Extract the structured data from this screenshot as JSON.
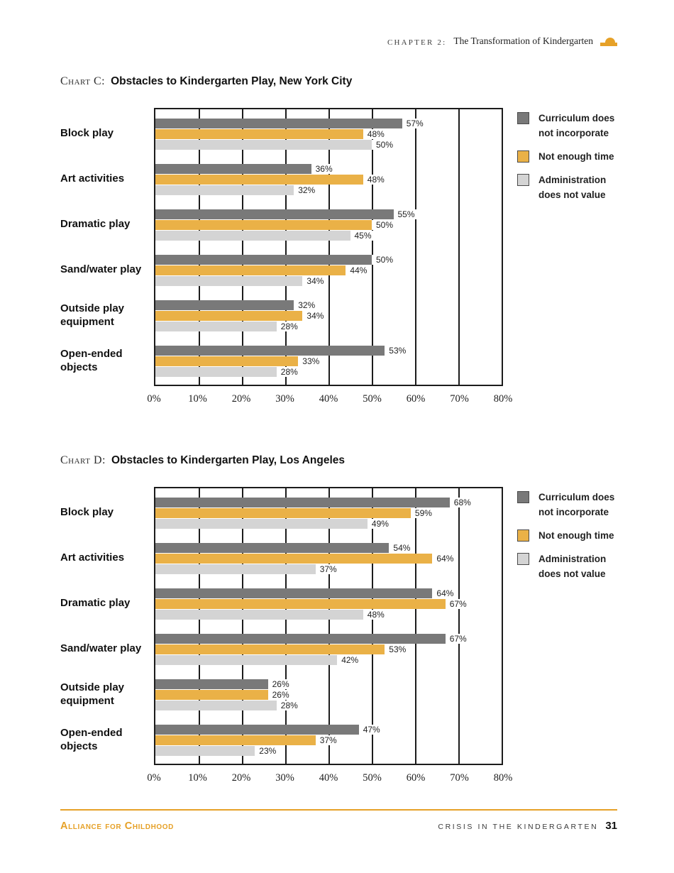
{
  "header": {
    "chapter_label": "CHAPTER 2:",
    "chapter_title": "The Transformation of Kindergarten",
    "icon": "orange-mound-icon"
  },
  "colors": {
    "accent_orange": "#E6A128",
    "bar_dark_gray": "#797979",
    "bar_orange": "#EAB147",
    "bar_light_gray": "#D4D4D4"
  },
  "chart_data": [
    {
      "type": "bar",
      "orientation": "horizontal",
      "label": "Chart C:",
      "title": "Obstacles to Kindergarten Play, New York City",
      "categories": [
        "Block play",
        "Art activities",
        "Dramatic play",
        "Sand/water play",
        "Outside play equipment",
        "Open-ended objects"
      ],
      "series": [
        {
          "name": "Curriculum does not incorporate",
          "color_key": "bar_dark_gray",
          "values": [
            57,
            36,
            55,
            50,
            32,
            53
          ]
        },
        {
          "name": "Not enough time",
          "color_key": "bar_orange",
          "values": [
            48,
            48,
            50,
            44,
            34,
            33
          ]
        },
        {
          "name": "Administration does not value",
          "color_key": "bar_light_gray",
          "values": [
            50,
            32,
            45,
            34,
            28,
            28
          ]
        }
      ],
      "xlim": [
        0,
        80
      ],
      "x_ticks": [
        "0%",
        "10%",
        "20%",
        "30%",
        "40%",
        "50%",
        "60%",
        "70%",
        "80%"
      ],
      "value_suffix": "%",
      "grid": true,
      "legend_position": "right",
      "legend": [
        {
          "label": "Curriculum does not incorporate",
          "color_key": "bar_dark_gray"
        },
        {
          "label": "Not enough time",
          "color_key": "bar_orange"
        },
        {
          "label": "Administration does not value",
          "color_key": "bar_light_gray"
        }
      ]
    },
    {
      "type": "bar",
      "orientation": "horizontal",
      "label": "Chart D:",
      "title": "Obstacles to Kindergarten Play, Los Angeles",
      "categories": [
        "Block play",
        "Art activities",
        "Dramatic play",
        "Sand/water play",
        "Outside play equipment",
        "Open-ended objects"
      ],
      "series": [
        {
          "name": "Curriculum does not incorporate",
          "color_key": "bar_dark_gray",
          "values": [
            68,
            54,
            64,
            67,
            26,
            47
          ]
        },
        {
          "name": "Not enough time",
          "color_key": "bar_orange",
          "values": [
            59,
            64,
            67,
            53,
            26,
            37
          ]
        },
        {
          "name": "Administration does not value",
          "color_key": "bar_light_gray",
          "values": [
            49,
            37,
            48,
            42,
            28,
            23
          ]
        }
      ],
      "xlim": [
        0,
        80
      ],
      "x_ticks": [
        "0%",
        "10%",
        "20%",
        "30%",
        "40%",
        "50%",
        "60%",
        "70%",
        "80%"
      ],
      "value_suffix": "%",
      "grid": true,
      "legend_position": "right",
      "legend": [
        {
          "label": "Curriculum does not incorporate",
          "color_key": "bar_dark_gray"
        },
        {
          "label": "Not enough time",
          "color_key": "bar_orange"
        },
        {
          "label": "Administration does not value",
          "color_key": "bar_light_gray"
        }
      ]
    }
  ],
  "footer": {
    "left_text": "Alliance for Childhood",
    "right_text": "CRISIS IN THE KINDERGARTEN",
    "page_number": "31"
  }
}
